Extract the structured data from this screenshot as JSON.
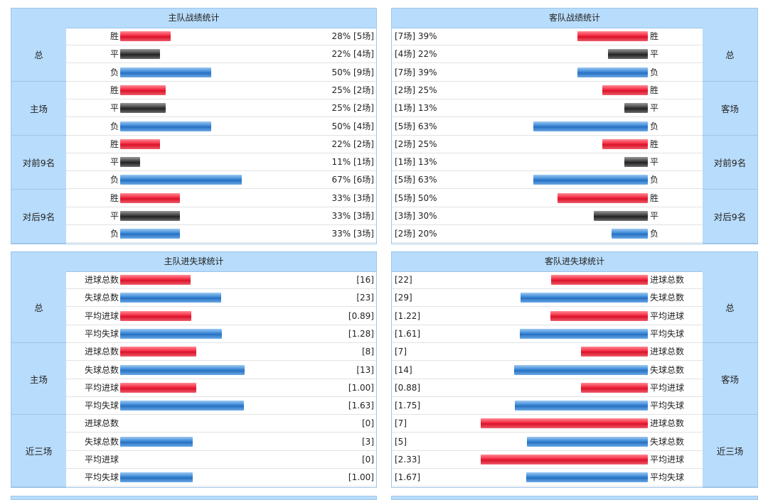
{
  "colors": {
    "win": "#e8283c",
    "draw": "#333333",
    "loss": "#3b82d0",
    "header_bg": "#b8dcfb"
  },
  "home_record": {
    "title": "主队战绩统计",
    "groups": [
      {
        "name": "总",
        "rows": [
          {
            "label": "胜",
            "type": "win",
            "pct": 28,
            "value": "28% [5场]"
          },
          {
            "label": "平",
            "type": "draw",
            "pct": 22,
            "value": "22% [4场]"
          },
          {
            "label": "负",
            "type": "loss",
            "pct": 50,
            "value": "50% [9场]"
          }
        ]
      },
      {
        "name": "主场",
        "rows": [
          {
            "label": "胜",
            "type": "win",
            "pct": 25,
            "value": "25% [2场]"
          },
          {
            "label": "平",
            "type": "draw",
            "pct": 25,
            "value": "25% [2场]"
          },
          {
            "label": "负",
            "type": "loss",
            "pct": 50,
            "value": "50% [4场]"
          }
        ]
      },
      {
        "name": "对前9名",
        "rows": [
          {
            "label": "胜",
            "type": "win",
            "pct": 22,
            "value": "22% [2场]"
          },
          {
            "label": "平",
            "type": "draw",
            "pct": 11,
            "value": "11% [1场]"
          },
          {
            "label": "负",
            "type": "loss",
            "pct": 67,
            "value": "67% [6场]"
          }
        ]
      },
      {
        "name": "对后9名",
        "rows": [
          {
            "label": "胜",
            "type": "win",
            "pct": 33,
            "value": "33% [3场]"
          },
          {
            "label": "平",
            "type": "draw",
            "pct": 33,
            "value": "33% [3场]"
          },
          {
            "label": "负",
            "type": "loss",
            "pct": 33,
            "value": "33% [3场]"
          }
        ]
      }
    ]
  },
  "away_record": {
    "title": "客队战绩统计",
    "groups": [
      {
        "name": "总",
        "rows": [
          {
            "label": "胜",
            "type": "win",
            "pct": 39,
            "value": "[7场] 39%"
          },
          {
            "label": "平",
            "type": "draw",
            "pct": 22,
            "value": "[4场] 22%"
          },
          {
            "label": "负",
            "type": "loss",
            "pct": 39,
            "value": "[7场] 39%"
          }
        ]
      },
      {
        "name": "客场",
        "rows": [
          {
            "label": "胜",
            "type": "win",
            "pct": 25,
            "value": "[2场] 25%"
          },
          {
            "label": "平",
            "type": "draw",
            "pct": 13,
            "value": "[1场] 13%"
          },
          {
            "label": "负",
            "type": "loss",
            "pct": 63,
            "value": "[5场] 63%"
          }
        ]
      },
      {
        "name": "对前9名",
        "rows": [
          {
            "label": "胜",
            "type": "win",
            "pct": 25,
            "value": "[2场] 25%"
          },
          {
            "label": "平",
            "type": "draw",
            "pct": 13,
            "value": "[1场] 13%"
          },
          {
            "label": "负",
            "type": "loss",
            "pct": 63,
            "value": "[5场] 63%"
          }
        ]
      },
      {
        "name": "对后9名",
        "rows": [
          {
            "label": "胜",
            "type": "win",
            "pct": 50,
            "value": "[5场] 50%"
          },
          {
            "label": "平",
            "type": "draw",
            "pct": 30,
            "value": "[3场] 30%"
          },
          {
            "label": "负",
            "type": "loss",
            "pct": 20,
            "value": "[2场] 20%"
          }
        ]
      }
    ]
  },
  "home_goals": {
    "title": "主队进失球统计",
    "groups": [
      {
        "name": "总",
        "rows": [
          {
            "label": "进球总数",
            "type": "win",
            "num": 16,
            "max": 38,
            "value": "[16]"
          },
          {
            "label": "失球总数",
            "type": "loss",
            "num": 23,
            "max": 38,
            "value": "[23]"
          },
          {
            "label": "平均进球",
            "type": "win",
            "num": 0.89,
            "max": 2.1,
            "value": "[0.89]"
          },
          {
            "label": "平均失球",
            "type": "loss",
            "num": 1.28,
            "max": 2.1,
            "value": "[1.28]"
          }
        ]
      },
      {
        "name": "主场",
        "rows": [
          {
            "label": "进球总数",
            "type": "win",
            "num": 8,
            "max": 17.5,
            "value": "[8]"
          },
          {
            "label": "失球总数",
            "type": "loss",
            "num": 13,
            "max": 17.5,
            "value": "[13]"
          },
          {
            "label": "平均进球",
            "type": "win",
            "num": 1.0,
            "max": 2.2,
            "value": "[1.00]"
          },
          {
            "label": "平均失球",
            "type": "loss",
            "num": 1.63,
            "max": 2.2,
            "value": "[1.63]"
          }
        ]
      },
      {
        "name": "近三场",
        "rows": [
          {
            "label": "进球总数",
            "type": "win",
            "num": 0,
            "max": 6.9,
            "value": "[0]"
          },
          {
            "label": "失球总数",
            "type": "loss",
            "num": 3,
            "max": 6.9,
            "value": "[3]"
          },
          {
            "label": "平均进球",
            "type": "win",
            "num": 0,
            "max": 2.3,
            "value": "[0]"
          },
          {
            "label": "平均失球",
            "type": "loss",
            "num": 1.0,
            "max": 2.3,
            "value": "[1.00]"
          }
        ]
      }
    ]
  },
  "away_goals": {
    "title": "客队进失球统计",
    "groups": [
      {
        "name": "总",
        "rows": [
          {
            "label": "进球总数",
            "type": "win",
            "num": 22,
            "max": 38,
            "value": "[22]"
          },
          {
            "label": "失球总数",
            "type": "loss",
            "num": 29,
            "max": 38,
            "value": "[29]"
          },
          {
            "label": "平均进球",
            "type": "win",
            "num": 1.22,
            "max": 2.1,
            "value": "[1.22]"
          },
          {
            "label": "平均失球",
            "type": "loss",
            "num": 1.61,
            "max": 2.1,
            "value": "[1.61]"
          }
        ]
      },
      {
        "name": "客场",
        "rows": [
          {
            "label": "进球总数",
            "type": "win",
            "num": 7,
            "max": 17.5,
            "value": "[7]"
          },
          {
            "label": "失球总数",
            "type": "loss",
            "num": 14,
            "max": 17.5,
            "value": "[14]"
          },
          {
            "label": "平均进球",
            "type": "win",
            "num": 0.88,
            "max": 2.2,
            "value": "[0.88]"
          },
          {
            "label": "平均失球",
            "type": "loss",
            "num": 1.75,
            "max": 2.2,
            "value": "[1.75]"
          }
        ]
      },
      {
        "name": "近三场",
        "rows": [
          {
            "label": "进球总数",
            "type": "win",
            "num": 7,
            "max": 6.9,
            "value": "[7]"
          },
          {
            "label": "失球总数",
            "type": "loss",
            "num": 5,
            "max": 6.9,
            "value": "[5]"
          },
          {
            "label": "平均进球",
            "type": "win",
            "num": 2.33,
            "max": 2.3,
            "value": "[2.33]"
          },
          {
            "label": "平均失球",
            "type": "loss",
            "num": 1.67,
            "max": 2.3,
            "value": "[1.67]"
          }
        ]
      }
    ]
  }
}
